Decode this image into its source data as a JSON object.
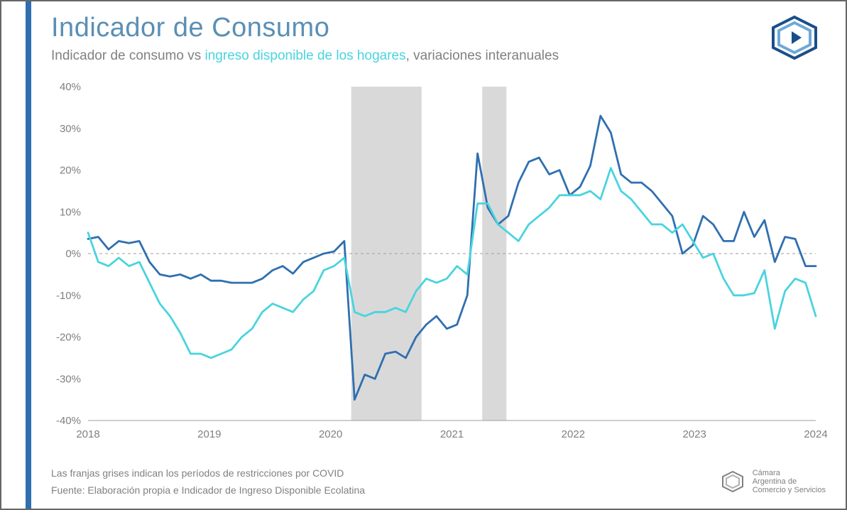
{
  "title": "Indicador de Consumo",
  "subtitle_a": "Indicador de consumo vs ",
  "subtitle_b": "ingreso disponible de los hogares",
  "subtitle_c": ", variaciones interanuales",
  "footnote1": "Las franjas grises indican los períodos de restricciones por COVID",
  "footnote2": "Fuente: Elaboración propia e Indicador de Ingreso Disponible Ecolatina",
  "footer_org_l1": "Cámara",
  "footer_org_l2": "Argentina de",
  "footer_org_l3": "Comercio y Servicios",
  "chart": {
    "type": "line",
    "background_color": "#ffffff",
    "grid_color": "#e6e6e6",
    "zero_line_dash": "4,4",
    "zero_line_color": "#9e9e9e",
    "axis_color": "#9e9e9e",
    "tick_font_size": 15,
    "tick_font_color": "#808080",
    "line_width": 2.8,
    "ylim": [
      -40,
      40
    ],
    "ytick_step": 10,
    "ytick_suffix": "%",
    "x_start": 2018.0,
    "x_end": 2024.0,
    "x_ticks": [
      2018,
      2019,
      2020,
      2021,
      2022,
      2023,
      2024
    ],
    "covid_bands": [
      {
        "start": 2020.17,
        "end": 2020.75,
        "color": "#d9d9d9"
      },
      {
        "start": 2021.25,
        "end": 2021.45,
        "color": "#d9d9d9"
      }
    ],
    "series": [
      {
        "name": "indicador_consumo",
        "color": "#2f6fb0",
        "values": [
          3.5,
          4,
          1,
          3,
          2.5,
          3,
          -2,
          -5,
          -5.5,
          -5,
          -6,
          -5,
          -6.5,
          -6.5,
          -7,
          -7,
          -7,
          -6,
          -4,
          -3,
          -4.8,
          -2,
          -1,
          0,
          0.5,
          3,
          -35,
          -29,
          -30,
          -24,
          -23.5,
          -25,
          -20,
          -17,
          -15,
          -18,
          -17,
          -10,
          24,
          11,
          7,
          9,
          17,
          22,
          23,
          19,
          20,
          14,
          16,
          21,
          33,
          29,
          19,
          17,
          17,
          15,
          12,
          9,
          0,
          2,
          9,
          7,
          3,
          3,
          10,
          4,
          8,
          -2,
          4,
          3.5,
          -3,
          -3
        ]
      },
      {
        "name": "ingreso_disponible",
        "color": "#49d4de",
        "values": [
          5,
          -2,
          -3,
          -1,
          -3,
          -2,
          -7,
          -12,
          -15,
          -19,
          -24,
          -24,
          -25,
          -24,
          -23,
          -20,
          -18,
          -14,
          -12,
          -13,
          -14,
          -11,
          -9,
          -4,
          -3,
          -1,
          -14,
          -15,
          -14,
          -14,
          -13,
          -14,
          -9,
          -6,
          -7,
          -6,
          -3,
          -5,
          12,
          12,
          7,
          5,
          3,
          7,
          9,
          11,
          14,
          14,
          14,
          15,
          13,
          20.5,
          15,
          13,
          10,
          7,
          7,
          5,
          7,
          3,
          -1,
          0,
          -6,
          -10,
          -10,
          -9.5,
          -4,
          -18,
          -9,
          -6,
          -7,
          -15
        ]
      }
    ]
  },
  "colors": {
    "left_bar": "#2f6fb0",
    "title": "#5a8fb5",
    "subtitle_gray": "#808080",
    "subtitle_highlight": "#49d4de",
    "logo_dark": "#1a4e8a",
    "logo_light": "#6fa8d8"
  }
}
